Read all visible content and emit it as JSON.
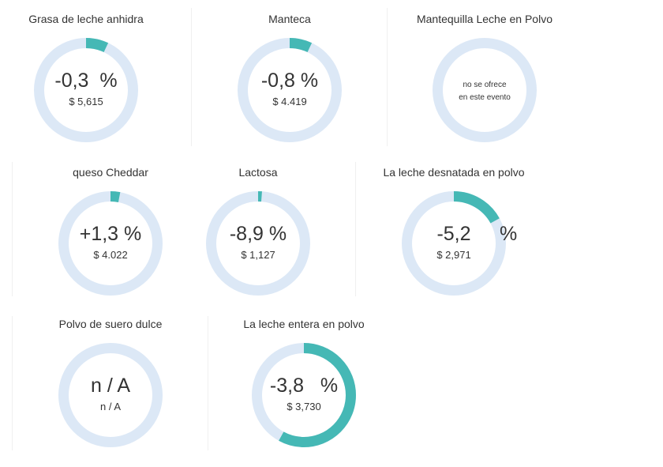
{
  "colors": {
    "track": "#dce8f6",
    "fill": "#45b8b5"
  },
  "cards": [
    {
      "title": "Grasa de leche anhidra",
      "value": "-0,3",
      "pct": "%",
      "price": "$ 5,615",
      "fraction": 0.07
    },
    {
      "title": "Manteca",
      "value": "-0,8",
      "pct": "%",
      "price": "$ 4.419",
      "fraction": 0.07
    },
    {
      "title": "Mantequilla Leche en Polvo",
      "note_line1": "no se ofrece",
      "note_line2": "en este evento",
      "fraction": 0
    },
    {
      "title": "queso Cheddar",
      "value": "+1,3",
      "pct": "%",
      "price": "$ 4.022",
      "fraction": 0.03
    },
    {
      "title": "Lactosa",
      "value": "-8,9",
      "pct": "%",
      "price": "$ 1,127",
      "fraction": 0.012
    },
    {
      "title": "La leche desnatada en polvo",
      "value": "-5,2",
      "pct": "%",
      "price": "$ 2,971",
      "fraction": 0.17
    },
    {
      "title": "Polvo de suero dulce",
      "value": "n / A",
      "price": "n / A",
      "fraction": 0
    },
    {
      "title": "La leche entera en polvo",
      "value": "-3,8",
      "pct": "%",
      "price": "$ 3,730",
      "fraction": 0.58
    }
  ]
}
